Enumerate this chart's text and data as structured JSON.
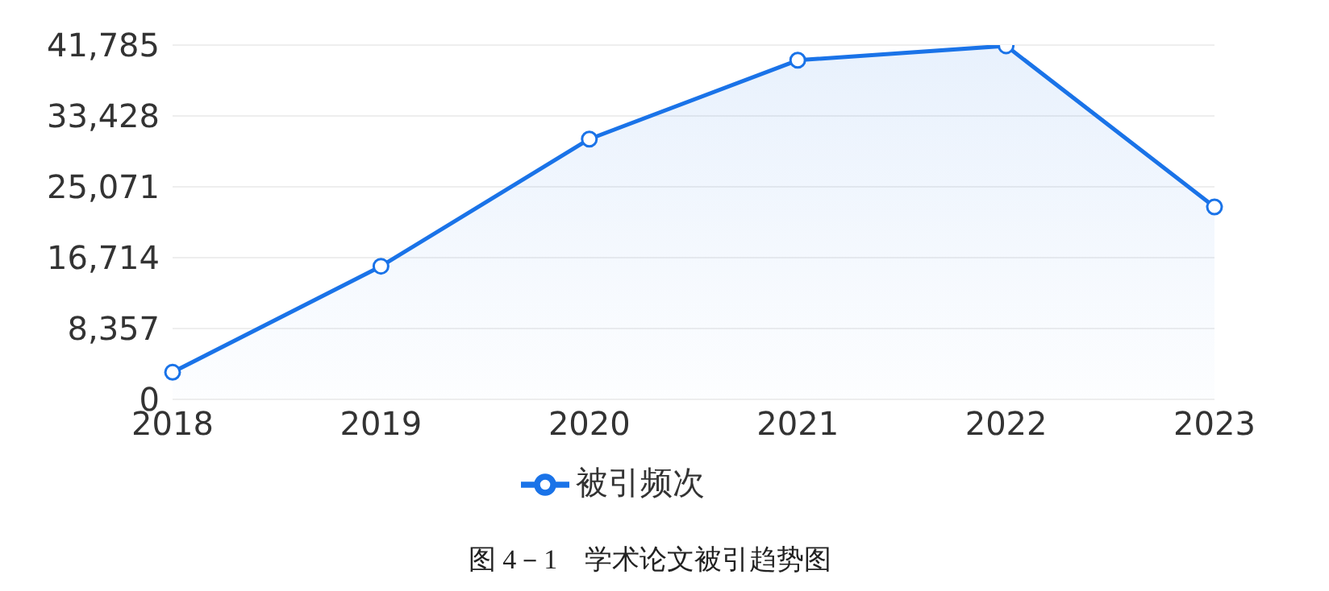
{
  "chart_data": {
    "type": "area",
    "categories": [
      "2018",
      "2019",
      "2020",
      "2021",
      "2022",
      "2023"
    ],
    "series": [
      {
        "name": "被引频次",
        "color": "#1a73e8",
        "values": [
          3200,
          15700,
          30700,
          40000,
          41700,
          22700
        ]
      }
    ],
    "ylim": [
      0,
      41785
    ],
    "yticks": [
      {
        "value": 0,
        "label": "0"
      },
      {
        "value": 8357,
        "label": "8,357"
      },
      {
        "value": 16714,
        "label": "16,714"
      },
      {
        "value": 25071,
        "label": "25,071"
      },
      {
        "value": 33428,
        "label": "33,428"
      },
      {
        "value": 41785,
        "label": "41,785"
      }
    ],
    "grid": "y",
    "legend": "bottom",
    "marker": "circle",
    "line_style": "solid",
    "annotations": [
      "图 4－1　学术论文被引趋势图"
    ]
  }
}
